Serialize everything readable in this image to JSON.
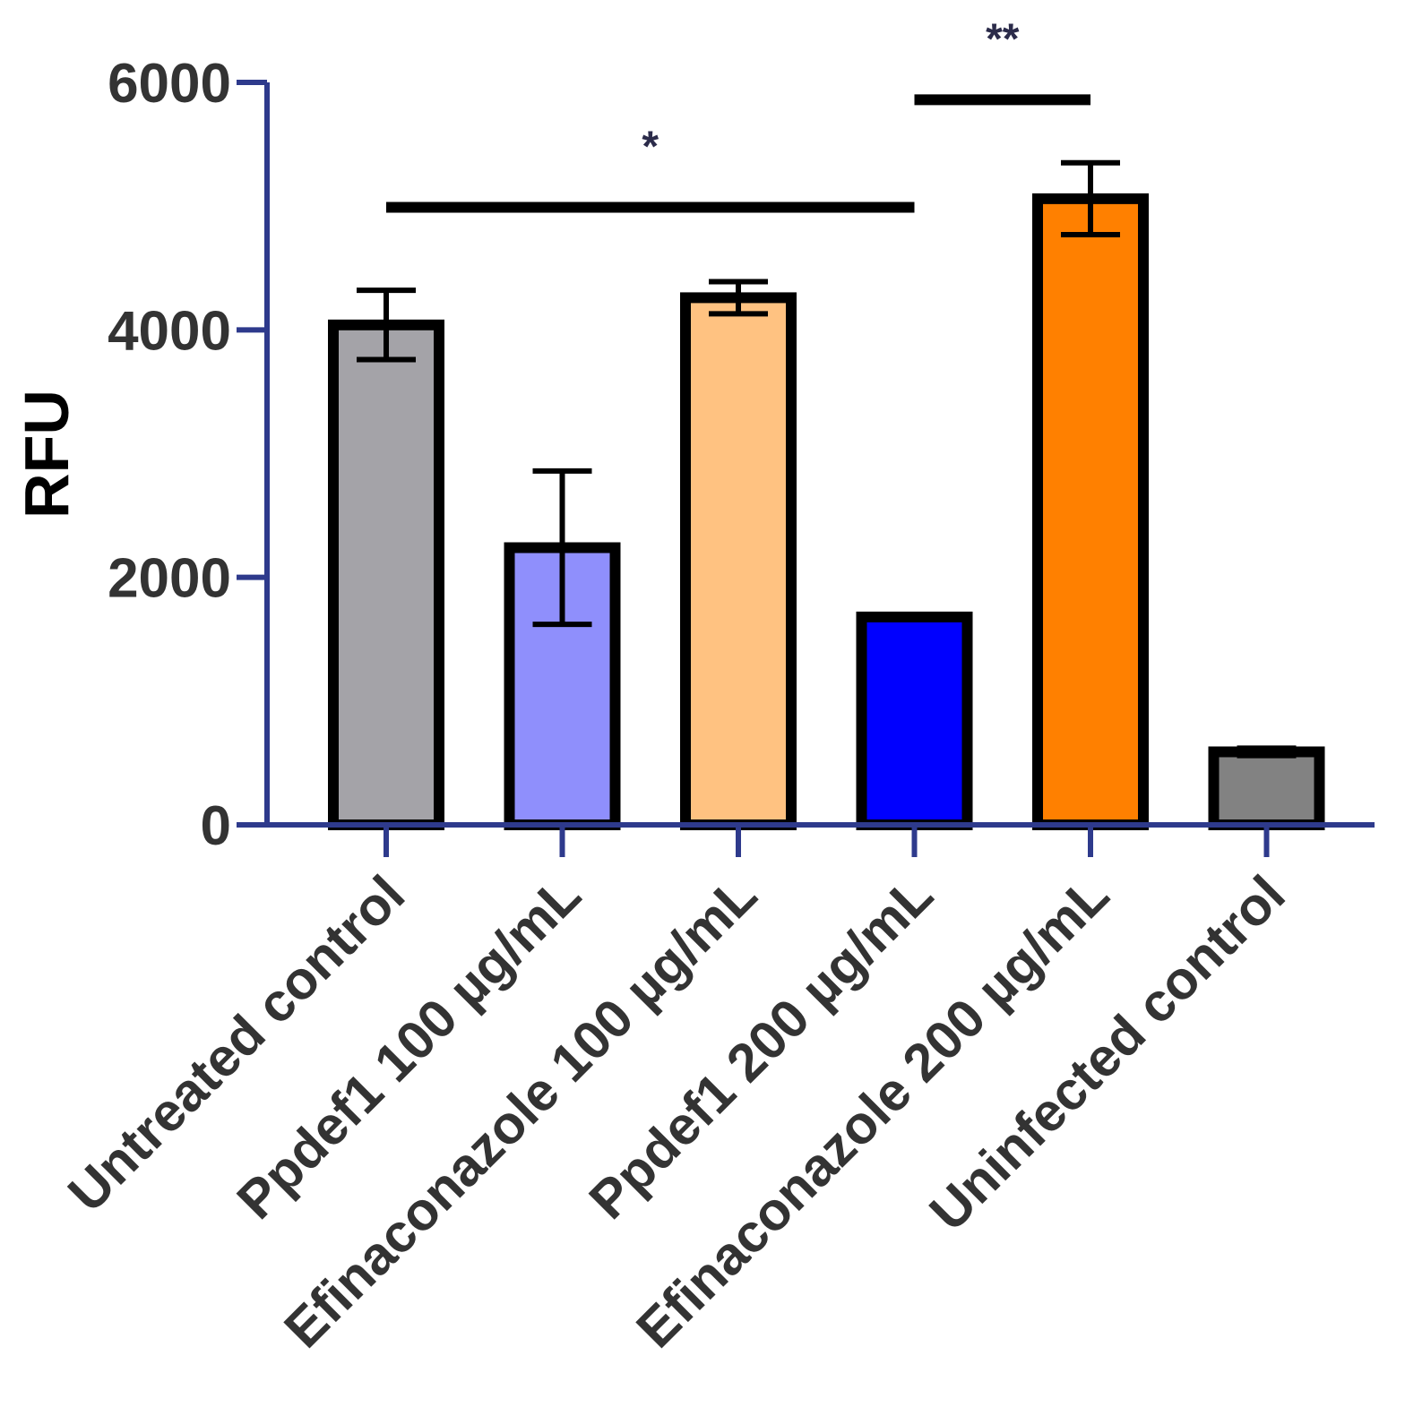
{
  "chart_data": {
    "type": "bar",
    "title": "",
    "xlabel": "",
    "ylabel": "RFU",
    "ylim": [
      0,
      6000
    ],
    "yticks": [
      0,
      2000,
      4000,
      6000
    ],
    "grid": false,
    "categories": [
      "Untreated control",
      "Ppdef1 100 µg/mL",
      "Efinaconazole 100 µg/mL",
      "Ppdef1 200 µg/mL",
      "Efinaconazole 200 µg/mL",
      "Uninfected control"
    ],
    "values": [
      4040,
      2240,
      4260,
      1680,
      5060,
      590
    ],
    "errors": [
      280,
      620,
      130,
      20,
      290,
      30
    ],
    "colors": [
      "#a4a3a8",
      "#8f8ffc",
      "#ffc281",
      "#0000ff",
      "#ff8000",
      "#828282"
    ],
    "significance": [
      {
        "label": "*",
        "from": 0,
        "to": 3,
        "y": 4990
      },
      {
        "label": "**",
        "from": 3,
        "to": 4,
        "y": 5860
      }
    ]
  }
}
